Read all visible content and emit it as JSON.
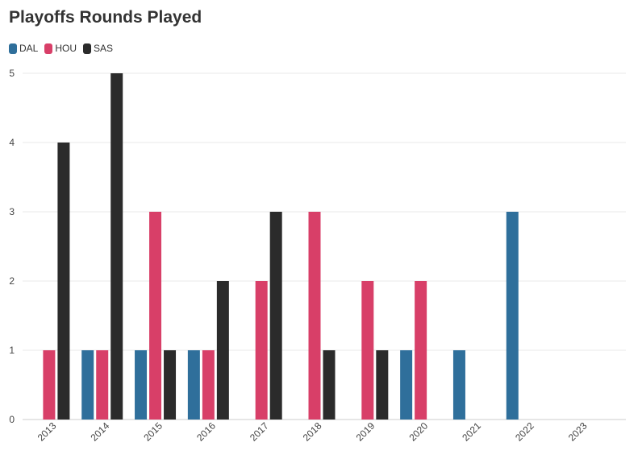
{
  "chart_data": {
    "type": "bar",
    "title": "Playoffs Rounds Played",
    "xlabel": "",
    "ylabel": "",
    "categories": [
      "2013",
      "2014",
      "2015",
      "2016",
      "2017",
      "2018",
      "2019",
      "2020",
      "2021",
      "2022",
      "2023"
    ],
    "series": [
      {
        "name": "DAL",
        "color": "#2f6f9b",
        "values": [
          0,
          1,
          1,
          1,
          0,
          0,
          0,
          1,
          1,
          3,
          0
        ]
      },
      {
        "name": "HOU",
        "color": "#d83f68",
        "values": [
          1,
          1,
          3,
          1,
          2,
          3,
          2,
          2,
          0,
          0,
          0
        ]
      },
      {
        "name": "SAS",
        "color": "#2b2b2b",
        "values": [
          4,
          5,
          1,
          2,
          3,
          1,
          1,
          0,
          0,
          0,
          0
        ]
      }
    ],
    "ylim": [
      0,
      5
    ],
    "yticks": [
      "0",
      "1",
      "2",
      "3",
      "4",
      "5"
    ],
    "grid": true,
    "legend_position": "top-left"
  }
}
